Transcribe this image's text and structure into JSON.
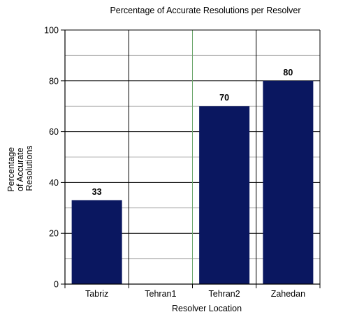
{
  "chart_data": {
    "type": "bar",
    "title": "Percentage of Accurate Resolutions per Resolver",
    "xlabel": "Resolver Location",
    "ylabel": [
      "Percentage",
      "of Accurate",
      "Resolutions"
    ],
    "categories": [
      "Tabriz",
      "Tehran1",
      "Tehran2",
      "Zahedan"
    ],
    "values": [
      33,
      0,
      70,
      80
    ],
    "data_labels": [
      "33",
      "",
      "70",
      "80"
    ],
    "ylim": [
      0,
      100
    ],
    "yticks": [
      0,
      20,
      40,
      60,
      80,
      100
    ],
    "grid": true,
    "legend": "none",
    "colors": {
      "bar": "#0a1760",
      "major_grid": "#000000",
      "minor_grid": "#b3b3b3",
      "tehran2_divider": "#6aa66a"
    }
  }
}
